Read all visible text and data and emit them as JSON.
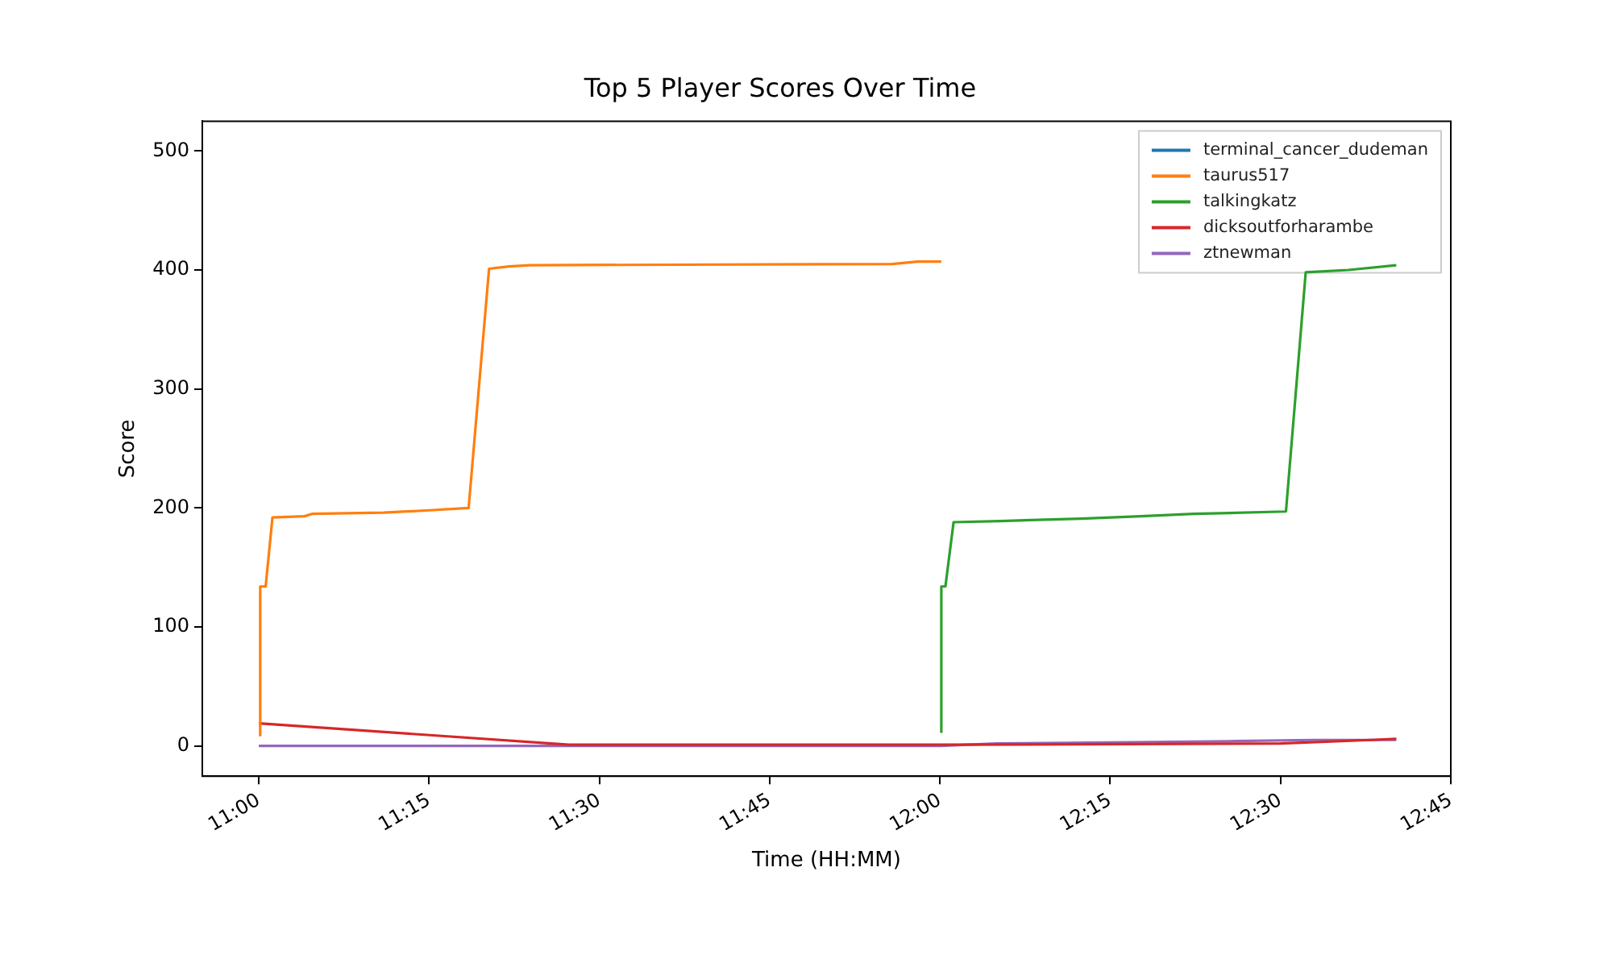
{
  "chart_data": {
    "type": "line",
    "title": "Top 5 Player Scores Over Time",
    "xlabel": "Time (HH:MM)",
    "ylabel": "Score",
    "xlim": [
      10.917,
      12.75
    ],
    "ylim": [
      -25.5,
      525
    ],
    "xticks": [
      {
        "value": 11,
        "label": "11:00"
      },
      {
        "value": 11.25,
        "label": "11:15"
      },
      {
        "value": 11.5,
        "label": "11:30"
      },
      {
        "value": 11.75,
        "label": "11:45"
      },
      {
        "value": 12,
        "label": "12:00"
      },
      {
        "value": 12.25,
        "label": "12:15"
      },
      {
        "value": 12.5,
        "label": "12:30"
      },
      {
        "value": 12.75,
        "label": "12:45"
      }
    ],
    "yticks": [
      0,
      100,
      200,
      300,
      400,
      500
    ],
    "legend": "top right",
    "grid": false,
    "series": [
      {
        "name": "terminal_cancer_dudeman",
        "color": "#1f77b4"
      },
      {
        "name": "taurus517",
        "color": "#ff7f0e",
        "x": [
          11.002,
          11.002,
          11.01,
          11.02,
          11.067,
          11.078,
          11.183,
          11.25,
          11.308,
          11.338,
          11.367,
          11.398,
          11.93,
          11.967,
          12.002
        ],
        "values": [
          8,
          134,
          134,
          192,
          193,
          195,
          196,
          198,
          200,
          401,
          403,
          404,
          405,
          407,
          407
        ]
      },
      {
        "name": "talkingkatz",
        "color": "#2ca02c",
        "x": [
          12.002,
          12.002,
          12.008,
          12.02,
          12.088,
          12.207,
          12.295,
          12.373,
          12.508,
          12.537,
          12.6,
          12.67
        ],
        "values": [
          11,
          134,
          134,
          188,
          189,
          191,
          193,
          195,
          197,
          398,
          400,
          404
        ]
      },
      {
        "name": "dicksoutforharambe",
        "color": "#d62728",
        "x": [
          11,
          11.455,
          12,
          12.5,
          12.633,
          12.67
        ],
        "values": [
          19,
          1,
          1,
          2,
          5,
          6
        ]
      },
      {
        "name": "ztnewman",
        "color": "#9467bd",
        "x": [
          11,
          12,
          12.083,
          12.283,
          12.433,
          12.55,
          12.67
        ],
        "values": [
          0,
          0,
          2,
          3,
          4,
          5,
          5
        ]
      }
    ]
  }
}
